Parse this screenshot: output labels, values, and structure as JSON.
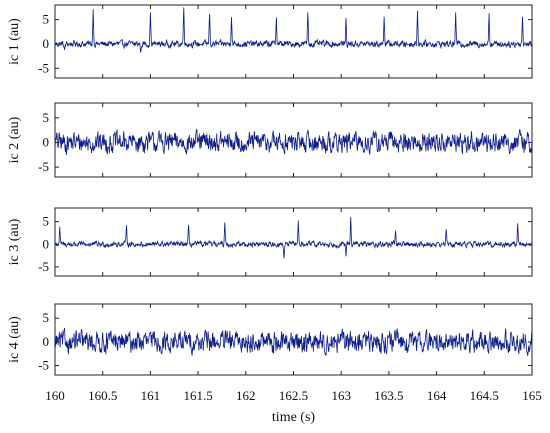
{
  "chart_data": [
    {
      "type": "line",
      "ylabel": "ic 1 (au)",
      "xlim": [
        160,
        165
      ],
      "ylim": [
        -7,
        8
      ],
      "yticks": [
        -5,
        0,
        5
      ],
      "series_color": "#0f1f8a",
      "noise_amplitude": 1.0,
      "spikes": [
        {
          "t": 160.1,
          "a": -1.6
        },
        {
          "t": 160.4,
          "a": 7.3
        },
        {
          "t": 160.9,
          "a": -1.8
        },
        {
          "t": 161.0,
          "a": 6.2
        },
        {
          "t": 161.35,
          "a": 8.0
        },
        {
          "t": 161.62,
          "a": 6.5
        },
        {
          "t": 161.85,
          "a": 6.1
        },
        {
          "t": 162.32,
          "a": 6.0
        },
        {
          "t": 162.65,
          "a": 6.8
        },
        {
          "t": 163.05,
          "a": 5.0
        },
        {
          "t": 163.45,
          "a": 6.3
        },
        {
          "t": 163.8,
          "a": 7.0
        },
        {
          "t": 164.2,
          "a": 5.8
        },
        {
          "t": 164.55,
          "a": 6.4
        },
        {
          "t": 164.9,
          "a": 5.6
        }
      ]
    },
    {
      "type": "line",
      "ylabel": "ic 2 (au)",
      "xlim": [
        160,
        165
      ],
      "ylim": [
        -7,
        8
      ],
      "yticks": [
        -5,
        0,
        5
      ],
      "series_color": "#0f1f8a",
      "noise_amplitude": 3.2,
      "spikes": []
    },
    {
      "type": "line",
      "ylabel": "ic 3 (au)",
      "xlim": [
        160,
        165
      ],
      "ylim": [
        -7,
        8
      ],
      "yticks": [
        -5,
        0,
        5
      ],
      "series_color": "#0f1f8a",
      "noise_amplitude": 0.9,
      "spikes": [
        {
          "t": 160.05,
          "a": 3.4
        },
        {
          "t": 160.75,
          "a": 4.6
        },
        {
          "t": 161.4,
          "a": 3.6
        },
        {
          "t": 161.78,
          "a": 5.2
        },
        {
          "t": 162.4,
          "a": -3.0
        },
        {
          "t": 162.55,
          "a": 5.0
        },
        {
          "t": 163.05,
          "a": -2.6
        },
        {
          "t": 163.1,
          "a": 5.8
        },
        {
          "t": 163.57,
          "a": 3.4
        },
        {
          "t": 164.1,
          "a": 3.6
        },
        {
          "t": 164.85,
          "a": 4.4
        }
      ]
    },
    {
      "type": "line",
      "ylabel": "ic 4 (au)",
      "xlim": [
        160,
        165
      ],
      "ylim": [
        -7,
        8
      ],
      "yticks": [
        -5,
        0,
        5
      ],
      "series_color": "#0f1f8a",
      "noise_amplitude": 3.4,
      "spikes": []
    }
  ],
  "xaxis": {
    "label": "time (s)",
    "ticks": [
      160,
      160.5,
      161,
      161.5,
      162,
      162.5,
      163,
      163.5,
      164,
      164.5,
      165
    ],
    "tick_labels": [
      "160",
      "160.5",
      "161",
      "161.5",
      "162",
      "162.5",
      "163",
      "163.5",
      "164",
      "164.5",
      "165"
    ]
  }
}
